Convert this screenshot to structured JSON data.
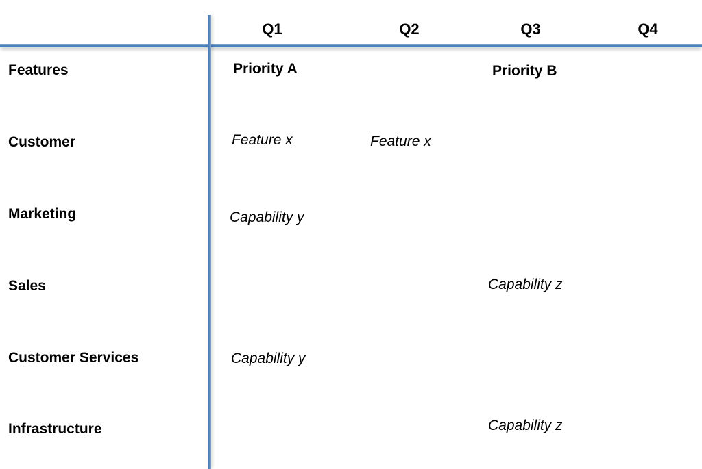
{
  "diagram": {
    "type": "roadmap-matrix",
    "columns": [
      {
        "label": "Q1"
      },
      {
        "label": "Q2"
      },
      {
        "label": "Q3"
      },
      {
        "label": "Q4"
      }
    ],
    "rows": [
      {
        "label": "Features"
      },
      {
        "label": "Customer"
      },
      {
        "label": "Marketing"
      },
      {
        "label": "Sales"
      },
      {
        "label": "Customer Services"
      },
      {
        "label": "Infrastructure"
      }
    ],
    "entries": [
      {
        "text": "Priority A",
        "row": "Features",
        "column": "Q1",
        "emphasis": "bold"
      },
      {
        "text": "Priority B",
        "row": "Features",
        "column": "Q3",
        "emphasis": "bold"
      },
      {
        "text": "Feature x",
        "row": "Customer",
        "column": "Q1",
        "emphasis": "italic"
      },
      {
        "text": "Feature x",
        "row": "Customer",
        "column": "Q2",
        "emphasis": "italic"
      },
      {
        "text": "Capability y",
        "row": "Marketing",
        "column": "Q1",
        "emphasis": "italic"
      },
      {
        "text": "Capability z",
        "row": "Sales",
        "column": "Q3",
        "emphasis": "italic"
      },
      {
        "text": "Capability y",
        "row": "Customer Services",
        "column": "Q1",
        "emphasis": "italic"
      },
      {
        "text": "Capability z",
        "row": "Infrastructure",
        "column": "Q3",
        "emphasis": "italic"
      }
    ],
    "colors": {
      "axis_blue": "#4F81BD",
      "text": "#000000",
      "background": "#FFFFFF"
    }
  }
}
